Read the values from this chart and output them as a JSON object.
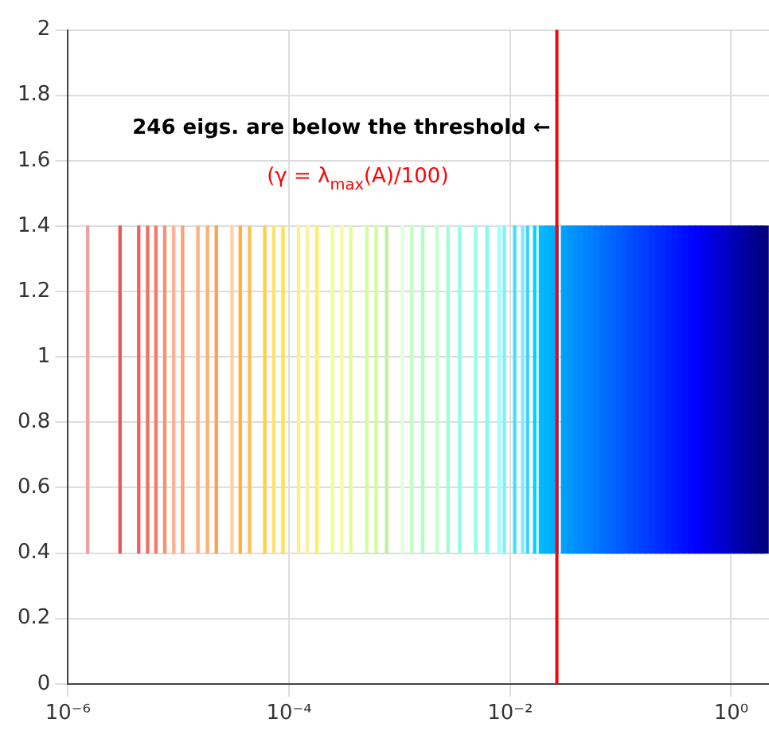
{
  "chart_data": {
    "type": "bar",
    "log": "x",
    "grid": true,
    "legend": false,
    "xlim": [
      1e-06,
      2.2
    ],
    "ylim": [
      0,
      2
    ],
    "xticks": [
      {
        "value": 1e-06,
        "label": "10⁻⁶"
      },
      {
        "value": 0.0001,
        "label": "10⁻⁴"
      },
      {
        "value": 0.01,
        "label": "10⁻²"
      },
      {
        "value": 1,
        "label": "10⁰"
      }
    ],
    "yticks": [
      0,
      0.2,
      0.4,
      0.6,
      0.8,
      1,
      1.2,
      1.4,
      1.6,
      1.8,
      2
    ],
    "series": [
      {
        "x": [
          1.51e-06,
          2.96e-06,
          4.37e-06,
          5.26e-06,
          6.25e-06,
          7.52e-06,
          9.06e-06,
          1.09e-05,
          1.5e-05,
          1.83e-05,
          2.2e-05,
          3.05e-05,
          3.62e-05,
          4.4e-05,
          6.04e-05,
          7.27e-05,
          8.83e-05,
          0.000122,
          0.000147,
          0.000179,
          0.000247,
          0.000301,
          0.000362,
          0.000506,
          0.000615,
          0.000764,
          0.00106,
          0.00129,
          0.00162,
          0.00219,
          0.00275,
          0.00349,
          0.00489,
          0.00619,
          0.00796,
          0.00887,
          0.011,
          0.013,
          0.0144,
          0.0167
        ],
        "base": [
          0.4,
          0.4,
          0.4,
          0.4,
          0.4,
          0.4,
          0.4,
          0.4,
          0.4,
          0.4,
          0.4,
          0.4,
          0.4,
          0.4,
          0.4,
          0.4,
          0.4,
          0.4,
          0.4,
          0.4,
          0.4,
          0.4,
          0.4,
          0.4,
          0.4,
          0.4,
          0.4,
          0.4,
          0.4,
          0.4,
          0.4,
          0.4,
          0.4,
          0.4,
          0.4,
          0.4,
          0.4,
          0.4,
          0.4,
          0.4
        ],
        "values": [
          1,
          1,
          1,
          1,
          1,
          1,
          1,
          1,
          1,
          1,
          1,
          1,
          1,
          1,
          1,
          1,
          1,
          1,
          1,
          1,
          1,
          1,
          1,
          1,
          1,
          1,
          1,
          1,
          1,
          1,
          1,
          1,
          1,
          1,
          1,
          1,
          1,
          1,
          1,
          1
        ],
        "colors": [
          "#f0a0a0",
          "#e85858",
          "#f06060",
          "#f07060",
          "#f87868",
          "#f89070",
          "#ffb090",
          "#ffa070",
          "#ffb080",
          "#ffb070",
          "#ffa050",
          "#ffd0a0",
          "#ffb040",
          "#ffc050",
          "#ffd040",
          "#ffe070",
          "#ffe050",
          "#fff080",
          "#fff0a0",
          "#fff060",
          "#f0ff90",
          "#f0ffa0",
          "#e0ff90",
          "#d0ffa0",
          "#d0ff90",
          "#c0f0a0",
          "#e0ffe0",
          "#c0ffc0",
          "#b0ffc0",
          "#c0ffd0",
          "#a0ffd0",
          "#90ffe0",
          "#90fff0",
          "#80fff0",
          "#a0ffff",
          "#80f0ff",
          "#40e0ff",
          "#80e8ff",
          "#40d0ff",
          "#00d0ff"
        ]
      },
      {
        "x": [
          0.01995,
          0.02239,
          0.02512,
          0.03162,
          0.03548,
          0.03981,
          0.04467,
          0.05012,
          0.05623,
          0.0631,
          0.07079,
          0.07943,
          0.08913,
          0.1,
          0.1122,
          0.1259,
          0.1413,
          0.1585,
          0.1778,
          0.1995,
          0.2239,
          0.2512,
          0.2818,
          0.3162,
          0.3548,
          0.3981,
          0.4467,
          0.5012,
          0.5623,
          0.631,
          0.7079,
          0.7943,
          0.8913,
          1,
          1.122,
          1.259,
          1.413,
          1.585,
          1.778,
          1.995
        ],
        "base": [
          0.4,
          0.4,
          0.4,
          0.4,
          0.4,
          0.4,
          0.4,
          0.4,
          0.4,
          0.4,
          0.4,
          0.4,
          0.4,
          0.4,
          0.4,
          0.4,
          0.4,
          0.4,
          0.4,
          0.4,
          0.4,
          0.4,
          0.4,
          0.4,
          0.4,
          0.4,
          0.4,
          0.4,
          0.4,
          0.4,
          0.4,
          0.4,
          0.4,
          0.4,
          0.4,
          0.4,
          0.4,
          0.4,
          0.4,
          0.4
        ],
        "values": [
          1,
          1,
          1,
          1,
          1,
          1,
          1,
          1,
          1,
          1,
          1,
          1,
          1,
          1,
          1,
          1,
          1,
          1,
          1,
          1,
          1,
          1,
          1,
          1,
          1,
          1,
          1,
          1,
          1,
          1,
          1,
          1,
          1,
          1,
          1,
          1,
          1,
          1,
          1,
          1
        ],
        "colors": [
          "#00b9ff",
          "#00b3ff",
          "#00acff",
          "#009fff",
          "#0098ff",
          "#0092ff",
          "#008bff",
          "#0084ff",
          "#007eff",
          "#0077ff",
          "#0071ff",
          "#006aff",
          "#0063ff",
          "#005dff",
          "#0056ff",
          "#004fff",
          "#0049ff",
          "#0042ff",
          "#003cff",
          "#0035ff",
          "#002eff",
          "#0028ff",
          "#0021ff",
          "#001aff",
          "#0014ff",
          "#000dff",
          "#0007ff",
          "#0000ff",
          "#0000f4",
          "#0000ea",
          "#0000df",
          "#0000d5",
          "#0000ca",
          "#0000bf",
          "#0000b5",
          "#0000aa",
          "#0000a0",
          "#000095",
          "#00008a",
          "#000080"
        ]
      }
    ],
    "ref_lines": [
      {
        "axis": "x",
        "value": 0.0265,
        "label": "(γ = λ$_{max}$(A)/100)",
        "color": "#ff0000"
      }
    ],
    "annotations": [
      {
        "text": "246 eigs. are below the threshold ←",
        "x": 0.0265,
        "y": 1.7
      }
    ]
  }
}
